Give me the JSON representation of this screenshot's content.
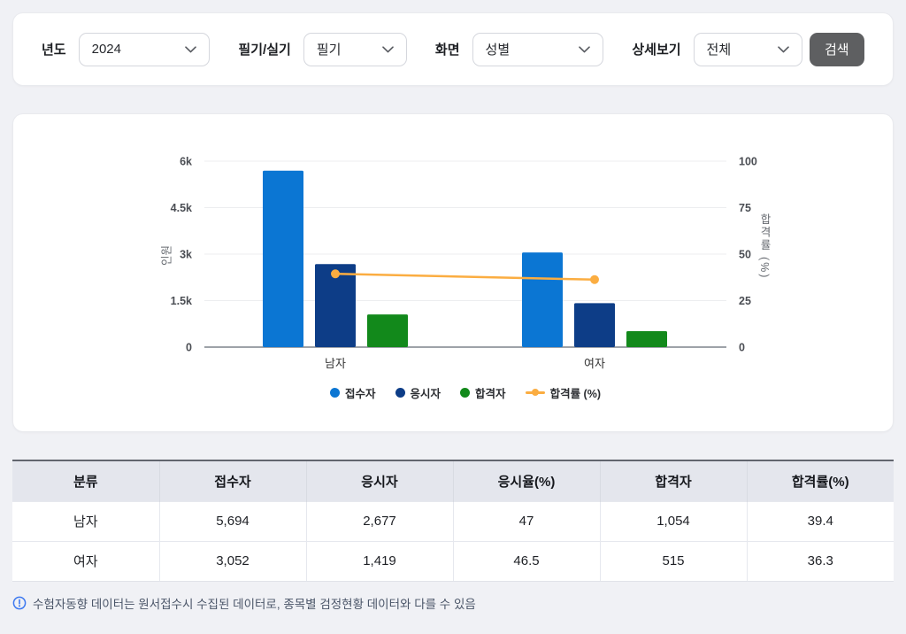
{
  "filter_bar": {
    "fields": [
      {
        "label": "년도",
        "value": "2024"
      },
      {
        "label": "필기/실기",
        "value": "필기"
      },
      {
        "label": "화면",
        "value": "성별"
      },
      {
        "label": "상세보기",
        "value": "전체"
      }
    ],
    "search_label": "검색"
  },
  "chart_data": {
    "type": "bar",
    "categories": [
      "남자",
      "여자"
    ],
    "series": [
      {
        "name": "접수자",
        "type": "bar",
        "color": "#0B76D3",
        "values": [
          5694,
          3052
        ]
      },
      {
        "name": "응시자",
        "type": "bar",
        "color": "#0D3D87",
        "values": [
          2677,
          1419
        ]
      },
      {
        "name": "합격자",
        "type": "bar",
        "color": "#12891B",
        "values": [
          1054,
          515
        ]
      },
      {
        "name": "합격률 (%)",
        "type": "line",
        "color": "#FBAD41",
        "axis": "right",
        "values": [
          39.4,
          36.3
        ]
      }
    ],
    "left_axis": {
      "title": "인원",
      "min": 0,
      "max": 6000,
      "ticks": [
        "0",
        "1.5k",
        "3k",
        "4.5k",
        "6k"
      ]
    },
    "right_axis": {
      "title": "합격률 (%)",
      "min": 0,
      "max": 100,
      "ticks": [
        "0",
        "25",
        "50",
        "75",
        "100"
      ]
    },
    "grid": true,
    "legend_position": "bottom"
  },
  "table": {
    "columns": [
      "분류",
      "접수자",
      "응시자",
      "응시율(%)",
      "합격자",
      "합격률(%)"
    ],
    "rows": [
      {
        "cells": [
          "남자",
          "5,694",
          "2,677",
          "47",
          "1,054",
          "39.4"
        ]
      },
      {
        "cells": [
          "여자",
          "3,052",
          "1,419",
          "46.5",
          "515",
          "36.3"
        ]
      }
    ]
  },
  "footer": {
    "note": "수험자동향 데이터는 원서접수시 수집된 데이터로, 종목별 검정현황 데이터와 다를 수 있음",
    "info_icon": "info-circle"
  },
  "colors": {
    "page_bg": "#F0F1F5",
    "accent_blue": "#0B76D3",
    "navy": "#0D3D87",
    "green": "#12891B",
    "orange": "#FBAD41",
    "button_gray": "#5E5F61",
    "table_header_bg": "#E4E6ED",
    "info_blue": "#3C78F0"
  }
}
